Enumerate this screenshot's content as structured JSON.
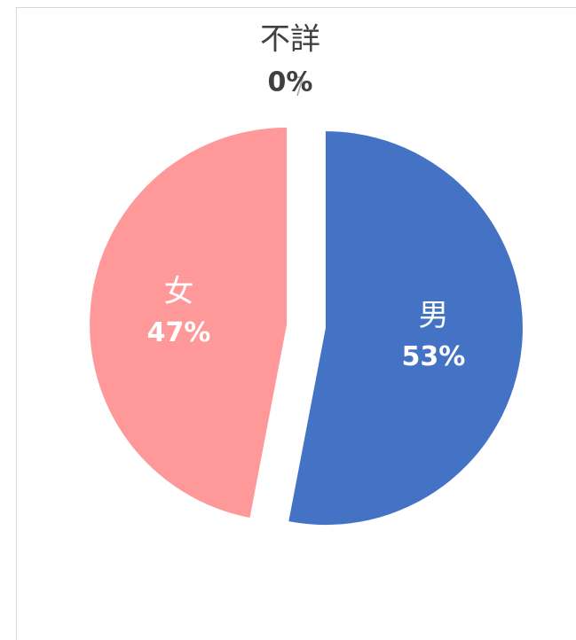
{
  "chart_data": {
    "type": "pie",
    "categories": [
      "男",
      "女",
      "不詳"
    ],
    "values": [
      53,
      47,
      0
    ],
    "value_labels": [
      "53%",
      "47%",
      "0%"
    ],
    "colors": [
      "#4472c4",
      "#ff9999",
      "#a5a5a5"
    ]
  }
}
